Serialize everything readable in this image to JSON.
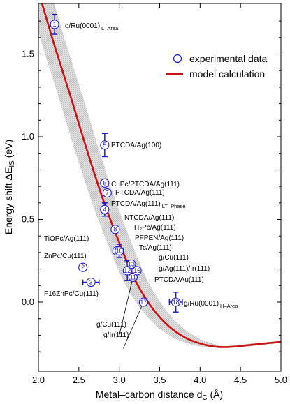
{
  "chart_data": {
    "type": "scatter",
    "xlabel": {
      "main": "Metal–carbon distance d",
      "sub": "C",
      "unit": " (Å)"
    },
    "ylabel": {
      "main": "Energy shift ΔE",
      "sub": "IS",
      "unit": " (eV)"
    },
    "xlim": [
      2.0,
      5.0
    ],
    "ylim": [
      -0.4,
      1.85
    ],
    "x_ticks": [
      "2.0",
      "2.5",
      "3.0",
      "3.5",
      "4.0",
      "4.5",
      "5.0"
    ],
    "y_ticks": [
      "0.0",
      "0.5",
      "1.0",
      "1.5"
    ],
    "legend": {
      "position": "top-right",
      "items": [
        "experimental data",
        "model calculation"
      ]
    },
    "colors": {
      "points": "#1a1acc",
      "model": "#cc1111",
      "band": "#c8c8c8"
    },
    "series": [
      {
        "name": "experimental data",
        "points": [
          {
            "id": "1",
            "x": 2.2,
            "y": 1.68,
            "xerr": 0.05,
            "yerr": 0.06
          },
          {
            "id": "2",
            "x": 2.55,
            "y": 0.21
          },
          {
            "id": "3",
            "x": 2.65,
            "y": 0.12,
            "xerr": 0.1
          },
          {
            "id": "4",
            "x": 2.82,
            "y": 0.56,
            "yerr": 0.04
          },
          {
            "id": "5",
            "x": 2.82,
            "y": 0.95,
            "yerr": 0.07
          },
          {
            "id": "6",
            "x": 2.82,
            "y": 0.72
          },
          {
            "id": "7",
            "x": 2.85,
            "y": 0.66
          },
          {
            "id": "8",
            "x": 2.95,
            "y": 0.44
          },
          {
            "id": "9",
            "x": 2.97,
            "y": 0.31
          },
          {
            "id": "10",
            "x": 3.0,
            "y": 0.31,
            "xerr": 0.05,
            "yerr": 0.04
          },
          {
            "id": "11",
            "x": 3.17,
            "y": 0.15
          },
          {
            "id": "12",
            "x": 3.1,
            "y": 0.19,
            "yerr": 0.06
          },
          {
            "id": "13",
            "x": 3.15,
            "y": 0.23
          },
          {
            "id": "16",
            "x": 3.22,
            "y": 0.19
          },
          {
            "id": "17",
            "x": 3.3,
            "y": 0.0
          },
          {
            "id": "18",
            "x": 3.7,
            "y": 0.0,
            "xerr": 0.08,
            "yerr": 0.06
          }
        ]
      },
      {
        "name": "model calculation",
        "x": [
          2.0,
          2.2,
          2.4,
          2.6,
          2.8,
          3.0,
          3.2,
          3.4,
          3.6,
          3.8,
          4.0,
          4.2,
          4.4,
          4.6,
          4.8,
          5.0
        ],
        "y": [
          1.88,
          1.55,
          1.24,
          0.92,
          0.62,
          0.36,
          0.13,
          -0.03,
          -0.14,
          -0.21,
          -0.25,
          -0.27,
          -0.27,
          -0.26,
          -0.25,
          -0.24
        ],
        "band_halfwidth_x": 0.15
      }
    ],
    "annotations": [
      {
        "main": "g/Ru(0001)",
        "sub": "L–Area"
      },
      {
        "main": "PTCDA/Ag(100)",
        "sub": ""
      },
      {
        "main": "CuPc/PTCDA/Ag(111)",
        "sub": ""
      },
      {
        "main": "PTCDA/Ag(111)",
        "sub": ""
      },
      {
        "main": "PTCDA/Ag(111)",
        "sub": "LT–Phase"
      },
      {
        "main": "NTCDA/Ag(111)",
        "sub": ""
      },
      {
        "main": "H₂Pc/Ag(111)",
        "sub": ""
      },
      {
        "main": "TiOPc/Ag(111)",
        "sub": ""
      },
      {
        "main": "PFPEN/Ag(111)",
        "sub": ""
      },
      {
        "main": "ZnPc/Cu(111)",
        "sub": ""
      },
      {
        "main": "Tc/Ag(111)",
        "sub": ""
      },
      {
        "main": "g/Cu(111)",
        "sub": ""
      },
      {
        "main": "g/Ag(111)/Ir(111)",
        "sub": ""
      },
      {
        "main": "PTCDA/Au(111)",
        "sub": ""
      },
      {
        "main": "g/Ru(0001)",
        "sub": "H–Area"
      },
      {
        "main": "F16ZnPc/Cu(111)",
        "sub": ""
      },
      {
        "main": "g/Cu(111)",
        "sub": ""
      },
      {
        "main": "g/Ir(111)",
        "sub": ""
      }
    ]
  }
}
